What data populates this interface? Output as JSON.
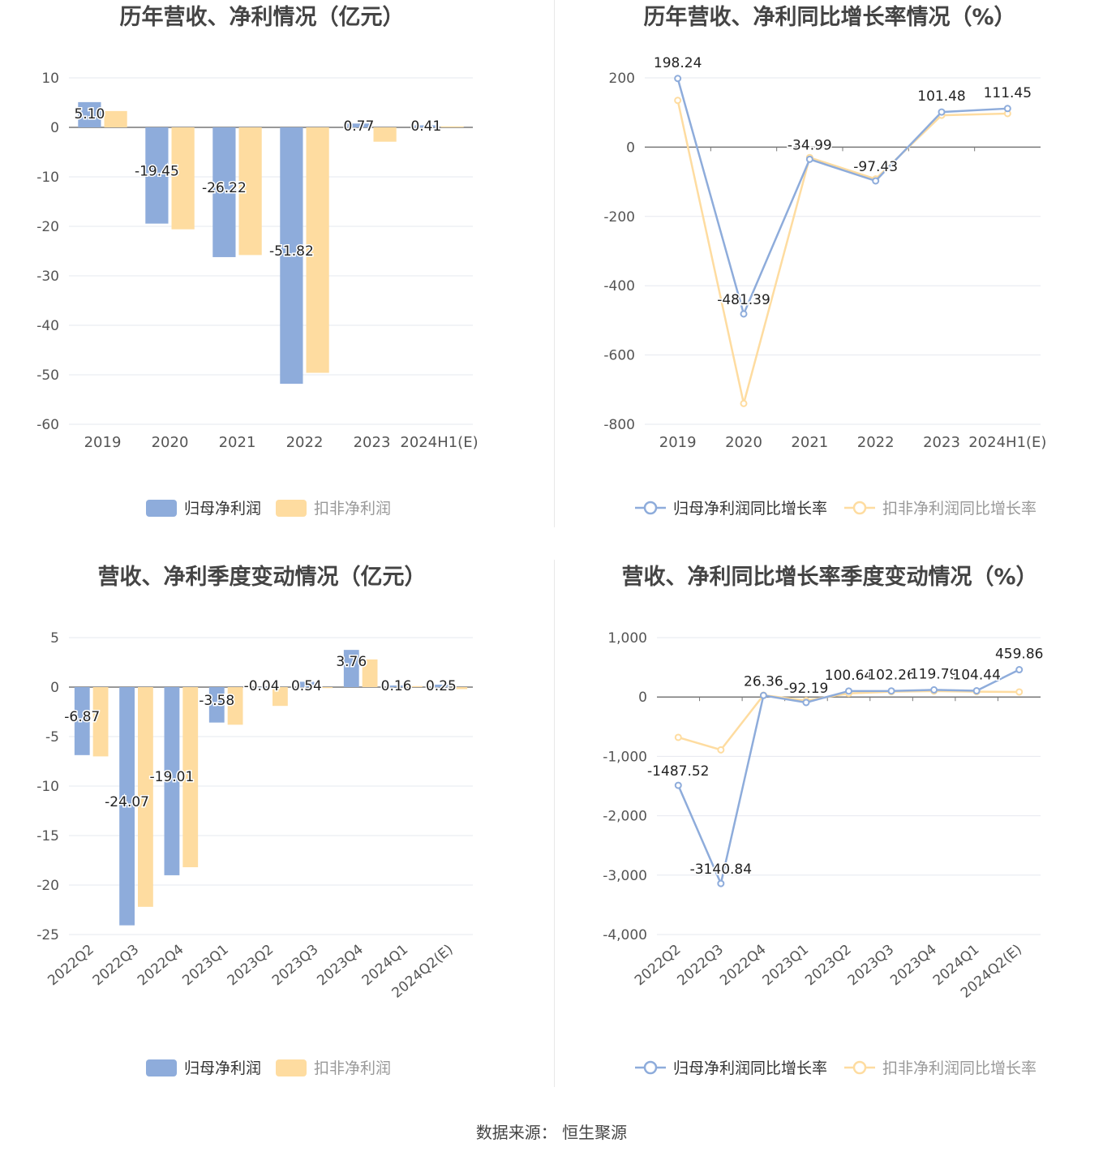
{
  "source": "数据来源：  恒生聚源",
  "colors": {
    "blue": "#8eacdb",
    "yellow": "#fedca0",
    "axis": "#777777",
    "grid": "#e6e8ef",
    "text": "#555555",
    "title": "#444444"
  },
  "chart_data": [
    {
      "type": "bar",
      "title": "历年营收、净利情况（亿元）",
      "categories": [
        "2019",
        "2020",
        "2021",
        "2022",
        "2023",
        "2024H1(E)"
      ],
      "ylim": [
        -60,
        10
      ],
      "yticks": [
        10,
        0,
        -10,
        -20,
        -30,
        -40,
        -50,
        -60
      ],
      "grid": true,
      "legend": "bottom",
      "series": [
        {
          "name": "归母净利润",
          "values": [
            5.1,
            -19.45,
            -26.22,
            -51.82,
            0.77,
            0.41
          ],
          "labels": [
            "5.10",
            "-19.45",
            "-26.22",
            "-51.82",
            "0.77",
            "0.41"
          ]
        },
        {
          "name": "扣非净利润",
          "values": [
            3.3,
            -20.6,
            -25.8,
            -49.6,
            -2.9,
            0.2
          ]
        }
      ]
    },
    {
      "type": "line",
      "title": "历年营收、净利同比增长率情况（%）",
      "categories": [
        "2019",
        "2020",
        "2021",
        "2022",
        "2023",
        "2024H1(E)"
      ],
      "ylim": [
        -800,
        200
      ],
      "yticks": [
        200,
        0,
        -200,
        -400,
        -600,
        -800
      ],
      "grid": true,
      "legend": "bottom",
      "series": [
        {
          "name": "归母净利润同比增长率",
          "values": [
            198.24,
            -481.39,
            -34.99,
            -97.43,
            101.48,
            111.45
          ],
          "labels": [
            "198.24",
            "-481.39",
            "-34.99",
            "-97.43",
            "101.48",
            "111.45"
          ]
        },
        {
          "name": "扣非净利润同比增长率",
          "values": [
            135,
            -740,
            -30,
            -92,
            92,
            97
          ]
        }
      ]
    },
    {
      "type": "bar",
      "title": "营收、净利季度变动情况（亿元）",
      "categories": [
        "2022Q2",
        "2022Q3",
        "2022Q4",
        "2023Q1",
        "2023Q2",
        "2023Q3",
        "2023Q4",
        "2024Q1",
        "2024Q2(E)"
      ],
      "ylim": [
        -25,
        5
      ],
      "yticks": [
        5,
        0,
        -5,
        -10,
        -15,
        -20,
        -25
      ],
      "grid": true,
      "legend": "bottom",
      "series": [
        {
          "name": "归母净利润",
          "values": [
            -6.87,
            -24.07,
            -19.01,
            -3.58,
            -0.04,
            0.54,
            3.76,
            0.16,
            0.25
          ],
          "labels": [
            "-6.87",
            "-24.07",
            "-19.01",
            "-3.58",
            "-0.04",
            "0.54",
            "3.76",
            "0.16",
            "0.25"
          ]
        },
        {
          "name": "扣非净利润",
          "values": [
            -7.0,
            -22.2,
            -18.2,
            -3.8,
            -1.9,
            -0.1,
            2.8,
            0.1,
            -0.2
          ]
        }
      ]
    },
    {
      "type": "line",
      "title": "营收、净利同比增长率季度变动情况（%）",
      "categories": [
        "2022Q2",
        "2022Q3",
        "2022Q4",
        "2023Q1",
        "2023Q2",
        "2023Q3",
        "2023Q4",
        "2024Q1",
        "2024Q2(E)"
      ],
      "ylim": [
        -4000,
        1000
      ],
      "yticks": [
        1000,
        0,
        -1000,
        -2000,
        -3000,
        -4000
      ],
      "yticklabels": [
        "1,000",
        "0",
        "-1,000",
        "-2,000",
        "-3,000",
        "-4,000"
      ],
      "grid": true,
      "legend": "bottom",
      "series": [
        {
          "name": "归母净利润同比增长率",
          "values": [
            -1487.52,
            -3140.84,
            26.36,
            -92.19,
            100.64,
            102.26,
            119.79,
            104.44,
            459.86
          ],
          "labels": [
            "-1487.52",
            "-3140.84",
            "26.36",
            "-92.19",
            "100.64",
            "102.26",
            "119.79",
            "104.44",
            "459.86"
          ]
        },
        {
          "name": "扣非净利润同比增长率",
          "values": [
            -680,
            -890,
            30,
            -60,
            60,
            90,
            100,
            90,
            85
          ]
        }
      ]
    }
  ]
}
